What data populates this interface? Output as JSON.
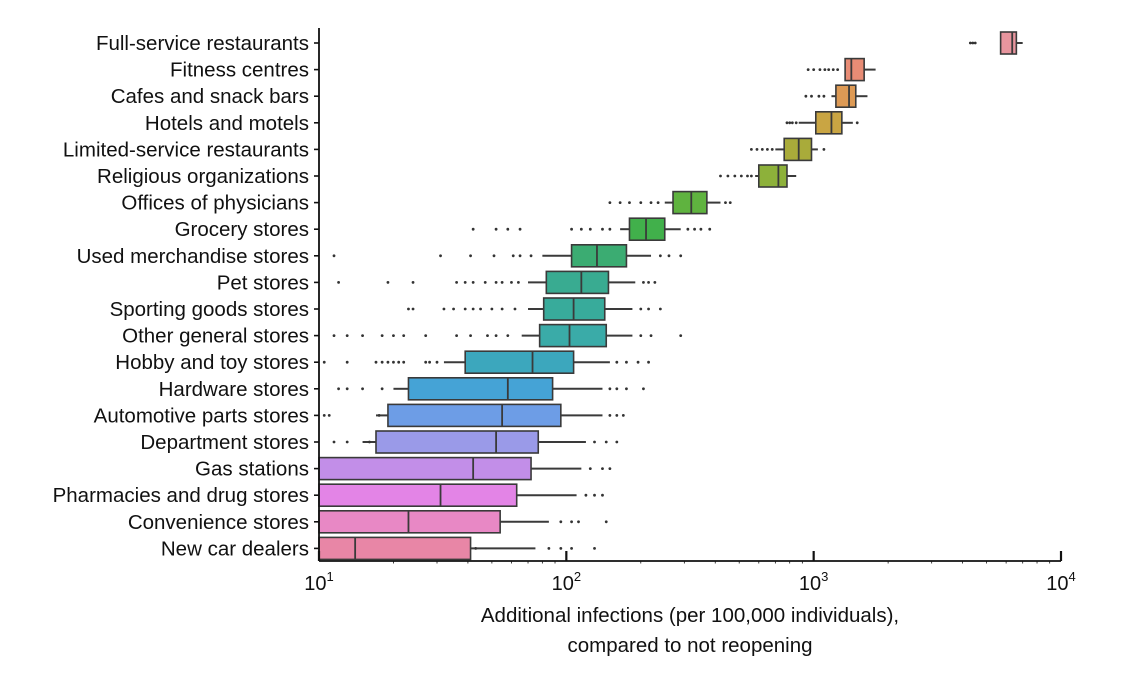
{
  "chart_data": {
    "type": "box",
    "orientation": "horizontal",
    "xscale": "log",
    "xlim": [
      10,
      10000
    ],
    "xticks": [
      {
        "value": 10,
        "base": "10",
        "exp": "1"
      },
      {
        "value": 100,
        "base": "10",
        "exp": "2"
      },
      {
        "value": 1000,
        "base": "10",
        "exp": "3"
      },
      {
        "value": 10000,
        "base": "10",
        "exp": "4"
      }
    ],
    "xlabel": [
      "Additional infections (per 100,000 individuals),",
      "compared to not reopening"
    ],
    "grid": false,
    "series": [
      {
        "category": "Full-service restaurants",
        "color": "#e8959e",
        "q1": 5700,
        "median": 6350,
        "q3": 6600,
        "whisker_low": 5700,
        "whisker_high": 7000,
        "outliers": [
          4300,
          4400,
          4500
        ]
      },
      {
        "category": "Fitness centres",
        "color": "#e88c75",
        "q1": 1340,
        "median": 1420,
        "q3": 1600,
        "whisker_low": 1340,
        "whisker_high": 1780,
        "outliers": [
          950,
          1000,
          1060,
          1110,
          1150,
          1200,
          1250
        ]
      },
      {
        "category": "Cafes and snack bars",
        "color": "#dd9a55",
        "q1": 1230,
        "median": 1390,
        "q3": 1480,
        "whisker_low": 1180,
        "whisker_high": 1650,
        "outliers": [
          930,
          980,
          1050,
          1100
        ]
      },
      {
        "category": "Hotels and motels",
        "color": "#c9a543",
        "q1": 1020,
        "median": 1180,
        "q3": 1300,
        "whisker_low": 870,
        "whisker_high": 1440,
        "outliers": [
          780,
          800,
          820,
          850,
          1500
        ]
      },
      {
        "category": "Limited-service restaurants",
        "color": "#a9ab3a",
        "q1": 760,
        "median": 870,
        "q3": 980,
        "whisker_low": 700,
        "whisker_high": 1040,
        "outliers": [
          560,
          590,
          620,
          650,
          680,
          1100
        ]
      },
      {
        "category": "Religious organizations",
        "color": "#8db13a",
        "q1": 600,
        "median": 720,
        "q3": 780,
        "whisker_low": 580,
        "whisker_high": 850,
        "outliers": [
          420,
          450,
          480,
          510,
          540,
          560
        ]
      },
      {
        "category": "Offices of physicians",
        "color": "#5fb33f",
        "q1": 270,
        "median": 320,
        "q3": 370,
        "whisker_low": 250,
        "whisker_high": 420,
        "outliers": [
          150,
          165,
          180,
          200,
          220,
          235,
          440,
          460
        ]
      },
      {
        "category": "Grocery stores",
        "color": "#41b04b",
        "q1": 180,
        "median": 210,
        "q3": 250,
        "whisker_low": 165,
        "whisker_high": 290,
        "outliers": [
          42,
          52,
          58,
          65,
          105,
          115,
          125,
          140,
          150,
          310,
          330,
          350,
          380
        ]
      },
      {
        "category": "Used merchandise stores",
        "color": "#3bac72",
        "q1": 105,
        "median": 133,
        "q3": 175,
        "whisker_low": 80,
        "whisker_high": 220,
        "outliers": [
          11.5,
          31,
          41,
          51,
          61,
          65,
          72,
          240,
          260,
          290
        ]
      },
      {
        "category": "Pet stores",
        "color": "#39ab91",
        "q1": 83,
        "median": 115,
        "q3": 148,
        "whisker_low": 70,
        "whisker_high": 190,
        "outliers": [
          12,
          19,
          24,
          36,
          39,
          42,
          47,
          52,
          55,
          60,
          64,
          205,
          215,
          228
        ]
      },
      {
        "category": "Sporting goods stores",
        "color": "#38ab9b",
        "q1": 81,
        "median": 107,
        "q3": 143,
        "whisker_low": 70,
        "whisker_high": 185,
        "outliers": [
          23,
          24,
          32,
          35,
          39,
          42,
          45,
          50,
          55,
          62,
          200,
          215,
          240
        ]
      },
      {
        "category": "Other general stores",
        "color": "#3aaba8",
        "q1": 78,
        "median": 103,
        "q3": 145,
        "whisker_low": 66,
        "whisker_high": 185,
        "outliers": [
          11.5,
          13,
          15,
          18,
          20,
          22,
          27,
          36,
          41,
          48,
          52,
          58,
          200,
          220,
          290
        ]
      },
      {
        "category": "Hobby and toy stores",
        "color": "#3ca7bd",
        "q1": 39,
        "median": 73,
        "q3": 107,
        "whisker_low": 32,
        "whisker_high": 150,
        "outliers": [
          10.5,
          13,
          17,
          18,
          19,
          20,
          21,
          22,
          27,
          28,
          30,
          160,
          175,
          195,
          215
        ]
      },
      {
        "category": "Hardware stores",
        "color": "#45a3d6",
        "q1": 23,
        "median": 58,
        "q3": 88,
        "whisker_low": 20,
        "whisker_high": 140,
        "outliers": [
          12,
          13,
          15,
          18,
          150,
          160,
          175,
          205
        ]
      },
      {
        "category": "Automotive parts stores",
        "color": "#6d9de6",
        "q1": 19,
        "median": 55,
        "q3": 95,
        "whisker_low": 17,
        "whisker_high": 140,
        "outliers": [
          10.5,
          11,
          17.5,
          150,
          160,
          170
        ]
      },
      {
        "category": "Department stores",
        "color": "#9a9ae8",
        "q1": 17,
        "median": 52,
        "q3": 77,
        "whisker_low": 15,
        "whisker_high": 120,
        "outliers": [
          11.5,
          13,
          16,
          130,
          145,
          160
        ]
      },
      {
        "category": "Gas stations",
        "color": "#c28ee8",
        "q1": 10,
        "median": 42,
        "q3": 72,
        "whisker_low": 10,
        "whisker_high": 115,
        "outliers": [
          125,
          140,
          150
        ]
      },
      {
        "category": "Pharmacies and drug stores",
        "color": "#e384e6",
        "q1": 10,
        "median": 31,
        "q3": 63,
        "whisker_low": 10,
        "whisker_high": 110,
        "outliers": [
          120,
          130,
          140
        ]
      },
      {
        "category": "Convenience stores",
        "color": "#e888c5",
        "q1": 10,
        "median": 23,
        "q3": 54,
        "whisker_low": 10,
        "whisker_high": 85,
        "outliers": [
          95,
          105,
          112,
          145
        ]
      },
      {
        "category": "New car dealers",
        "color": "#e886a6",
        "q1": 10,
        "median": 14,
        "q3": 41,
        "whisker_low": 10,
        "whisker_high": 75,
        "outliers": [
          43,
          85,
          95,
          105,
          130
        ]
      }
    ]
  }
}
